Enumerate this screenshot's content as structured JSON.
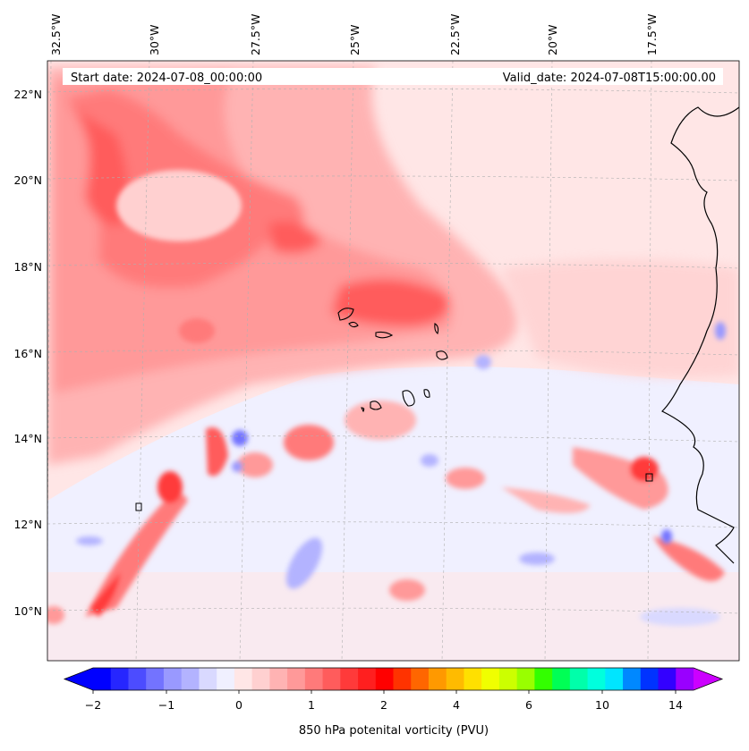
{
  "map": {
    "lon_labels": [
      "32.5°W",
      "30°W",
      "27.5°W",
      "25°W",
      "22.5°W",
      "20°W",
      "17.5°W"
    ],
    "lat_labels": [
      "22°N",
      "20°N",
      "18°N",
      "16°N",
      "14°N",
      "12°N",
      "10°N"
    ],
    "start_date_text": "Start date: 2024-07-08_00:00:00",
    "valid_date_text": "Valid_date: 2024-07-08T15:00:00.00",
    "extent": {
      "lon_min": -32.8,
      "lon_max": -15.3,
      "lat_min": 8.9,
      "lat_max": 22.8
    }
  },
  "colorbar": {
    "tick_labels": [
      "−2",
      "−1",
      "0",
      "1",
      "2",
      "4",
      "6",
      "10",
      "14"
    ],
    "title": "850 hPa potenital vorticity (PVU)",
    "colors": [
      "#0000ff",
      "#2626ff",
      "#4c4cff",
      "#7373ff",
      "#9999ff",
      "#b3b3ff",
      "#d9d9ff",
      "#f0f0ff",
      "#ffe6e6",
      "#ffd0d0",
      "#ffb3b3",
      "#ff9999",
      "#ff7a7a",
      "#ff5c5c",
      "#ff3a3a",
      "#ff1f1f",
      "#ff0000",
      "#ff3300",
      "#ff6600",
      "#ff9900",
      "#ffbb00",
      "#ffe000",
      "#f0ff00",
      "#ccff00",
      "#99ff00",
      "#33ff00",
      "#00ff55",
      "#00ffaa",
      "#00ffdd",
      "#00e5ff",
      "#0088ff",
      "#0033ff",
      "#3300ff",
      "#9900ff"
    ],
    "extend_low_color": "#0000ff",
    "extend_high_color": "#cc00ff"
  }
}
